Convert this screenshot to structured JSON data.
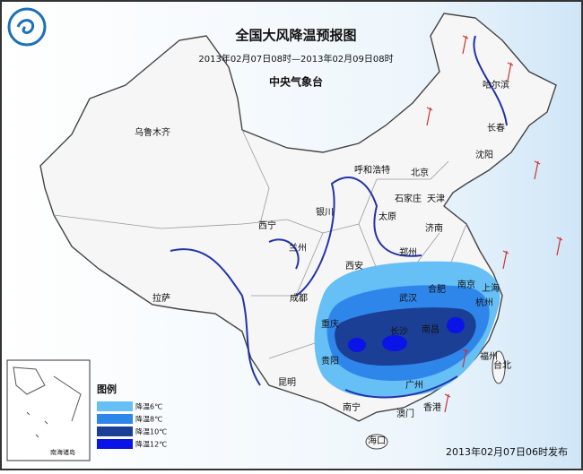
{
  "header": {
    "title": "全国大风降温预报图",
    "period": "2013年02月07日08时—2013年02月09日08时",
    "issuer": "中央气象台"
  },
  "cities": [
    "乌鲁木齐",
    "哈尔滨",
    "长春",
    "沈阳",
    "呼和浩特",
    "北京",
    "天津",
    "石家庄",
    "银川",
    "太原",
    "济南",
    "西宁",
    "兰州",
    "郑州",
    "西安",
    "拉萨",
    "成都",
    "武汉",
    "合肥",
    "南京",
    "上海",
    "杭州",
    "重庆",
    "南昌",
    "长沙",
    "贵阳",
    "福州",
    "昆明",
    "广州",
    "台北",
    "南宁",
    "澳门",
    "香港",
    "海口"
  ],
  "legend": {
    "title": "图例",
    "items": [
      {
        "label": "降温6℃",
        "color": "#66bff5"
      },
      {
        "label": "降温8℃",
        "color": "#2f86ea"
      },
      {
        "label": "降温10℃",
        "color": "#1c3f96"
      },
      {
        "label": "降温12℃",
        "color": "#0a14e6"
      }
    ]
  },
  "inset": {
    "label": "南海诸岛"
  },
  "footer": {
    "release": "2013年02月07日06时发布"
  }
}
